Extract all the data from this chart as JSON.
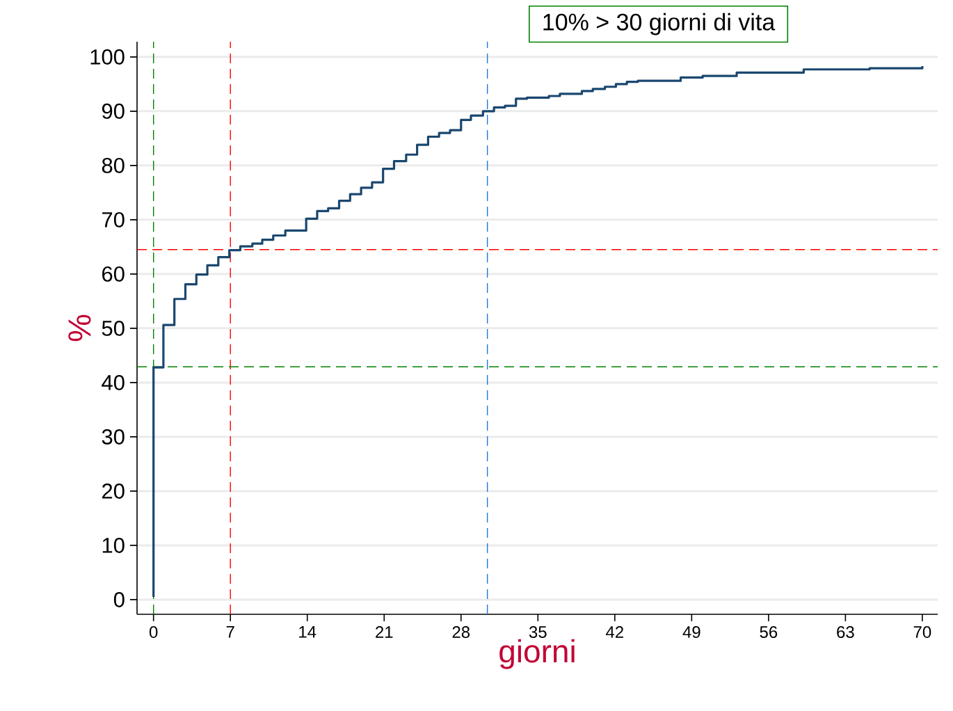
{
  "chart_data": {
    "type": "step",
    "xlabel": "giorni",
    "ylabel": "%",
    "annotations": [
      "10% > 30 giorni di vita"
    ],
    "xlim": [
      -1.5,
      71.4
    ],
    "ylim": [
      -2.7,
      102.8
    ],
    "xticks": [
      0,
      7,
      14,
      21,
      28,
      35,
      42,
      49,
      56,
      63,
      70
    ],
    "yticks": [
      0,
      10,
      20,
      30,
      40,
      50,
      60,
      70,
      80,
      90,
      100
    ],
    "grid": "y",
    "series": [
      {
        "color": "#1a476f",
        "x": [
          0,
          0,
          0.9,
          1.9,
          2.9,
          3.9,
          4.9,
          5.9,
          6.9,
          7.9,
          9.0,
          9.9,
          10.9,
          12,
          13.9,
          14.9,
          15.9,
          16.9,
          17.9,
          18.9,
          19.9,
          20.9,
          21.9,
          23,
          24,
          25,
          26,
          27,
          28,
          28.9,
          30,
          31,
          32,
          33,
          34,
          36,
          37,
          39,
          40,
          41.1,
          42.1,
          43.1,
          44.1,
          48,
          50,
          53.1,
          59.2,
          65.2,
          70
        ],
        "values": [
          0.5,
          42.8,
          50.6,
          55.4,
          58.1,
          59.9,
          61.6,
          63.1,
          64.4,
          65.1,
          65.6,
          66.3,
          67.1,
          68.0,
          70.2,
          71.6,
          72.1,
          73.5,
          74.7,
          75.9,
          76.9,
          79.4,
          80.8,
          82.0,
          83.8,
          85.3,
          86.0,
          86.5,
          88.4,
          89.2,
          90.0,
          90.7,
          91.0,
          92.3,
          92.5,
          92.8,
          93.2,
          93.7,
          94.1,
          94.5,
          95.0,
          95.4,
          95.6,
          96.2,
          96.5,
          97.1,
          97.7,
          97.9,
          98.3
        ]
      }
    ],
    "ref_lines": [
      {
        "axis": "x",
        "value": 0,
        "color": "#008000",
        "line_style": "dashed"
      },
      {
        "axis": "x",
        "value": 7,
        "color": "#ff0000",
        "line_style": "dashed"
      },
      {
        "axis": "x",
        "value": 30.4,
        "color": "#1e78dc",
        "line_style": "dashed"
      },
      {
        "axis": "y",
        "value": 64.5,
        "color": "#ff0000",
        "line_style": "dashed"
      },
      {
        "axis": "y",
        "value": 42.9,
        "color": "#008000",
        "line_style": "dashed"
      }
    ]
  }
}
